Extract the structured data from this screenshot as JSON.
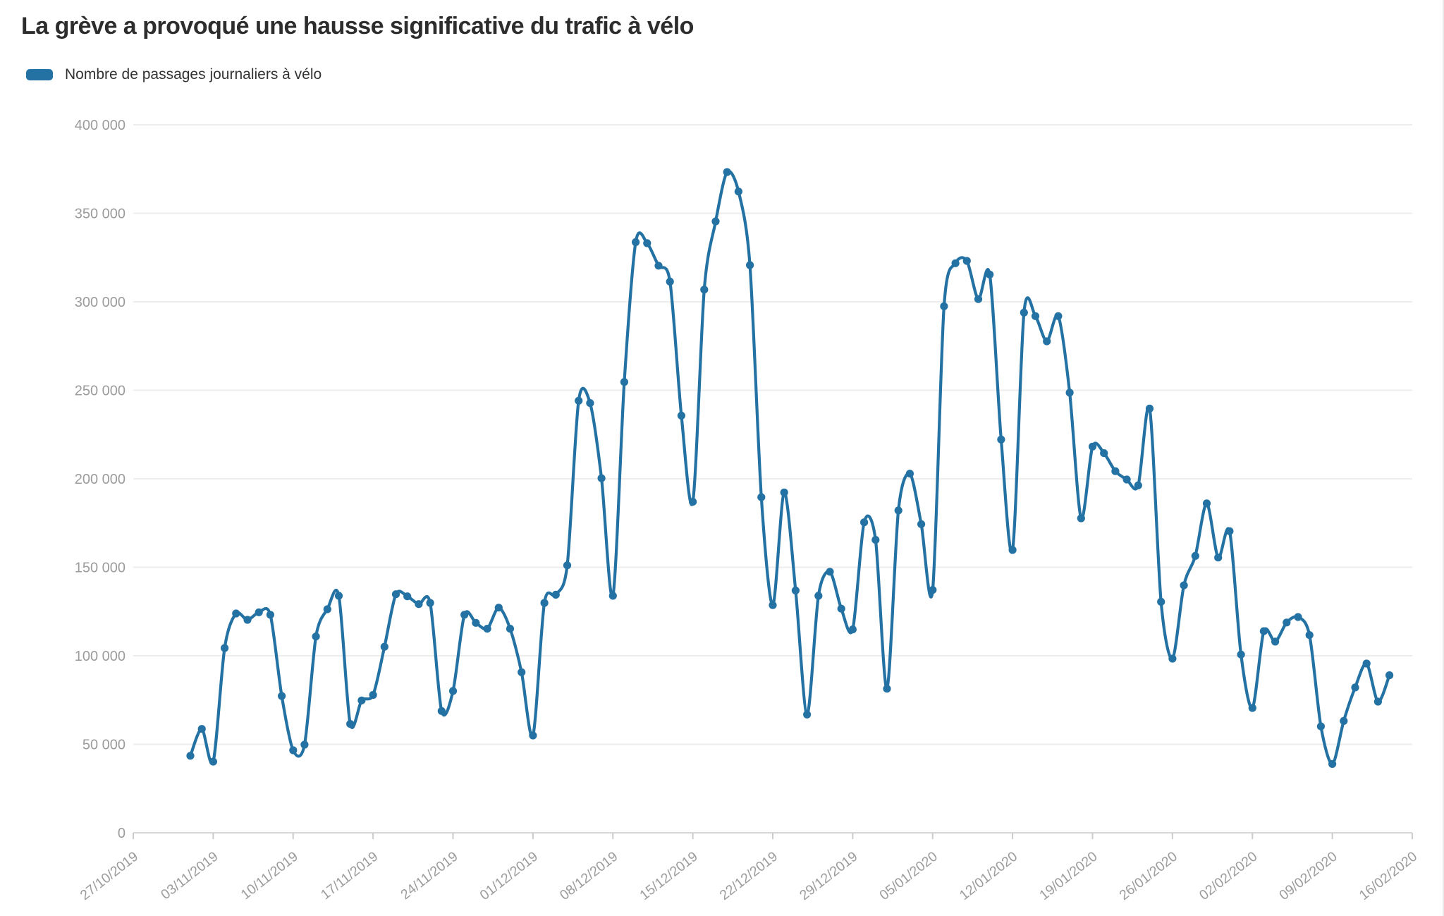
{
  "title": "La grève a provoqué une hausse significative du trafic à vélo",
  "legend": {
    "label": "Nombre de passages journaliers à vélo",
    "swatch_color": "#2372a3"
  },
  "chart_data": {
    "type": "line",
    "series_name": "Nombre de passages journaliers à vélo",
    "line_color": "#2372a3",
    "grid": "horizontal",
    "ylim": [
      0,
      400000
    ],
    "y_tick_interval": 50000,
    "y_tick_labels": [
      "0",
      "50 000",
      "100 000",
      "150 000",
      "200 000",
      "250 000",
      "300 000",
      "350 000",
      "400 000"
    ],
    "x_tick_labels": [
      "27/10/2019",
      "03/11/2019",
      "10/11/2019",
      "17/11/2019",
      "24/11/2019",
      "01/12/2019",
      "08/12/2019",
      "15/12/2019",
      "22/12/2019",
      "29/12/2019",
      "05/01/2020",
      "12/01/2020",
      "19/01/2020",
      "26/01/2020",
      "02/02/2020",
      "09/02/2020",
      "16/02/2020"
    ],
    "axis_start_date": "27/10/2019",
    "first_point_day_offset": 5,
    "dates": [
      "01/11/2019",
      "02/11/2019",
      "03/11/2019",
      "04/11/2019",
      "05/11/2019",
      "06/11/2019",
      "07/11/2019",
      "08/11/2019",
      "09/11/2019",
      "10/11/2019",
      "11/11/2019",
      "12/11/2019",
      "13/11/2019",
      "14/11/2019",
      "15/11/2019",
      "16/11/2019",
      "17/11/2019",
      "18/11/2019",
      "19/11/2019",
      "20/11/2019",
      "21/11/2019",
      "22/11/2019",
      "23/11/2019",
      "24/11/2019",
      "25/11/2019",
      "26/11/2019",
      "27/11/2019",
      "28/11/2019",
      "29/11/2019",
      "30/11/2019",
      "01/12/2019",
      "02/12/2019",
      "03/12/2019",
      "04/12/2019",
      "05/12/2019",
      "06/12/2019",
      "07/12/2019",
      "08/12/2019",
      "09/12/2019",
      "10/12/2019",
      "11/12/2019",
      "12/12/2019",
      "13/12/2019",
      "14/12/2019",
      "15/12/2019",
      "16/12/2019",
      "17/12/2019",
      "18/12/2019",
      "19/12/2019",
      "20/12/2019",
      "21/12/2019",
      "22/12/2019",
      "23/12/2019",
      "24/12/2019",
      "25/12/2019",
      "26/12/2019",
      "27/12/2019",
      "28/12/2019",
      "29/12/2019",
      "30/12/2019",
      "31/12/2019",
      "01/01/2020",
      "02/01/2020",
      "03/01/2020",
      "04/01/2020",
      "05/01/2020",
      "06/01/2020",
      "07/01/2020",
      "08/01/2020",
      "09/01/2020",
      "10/01/2020",
      "11/01/2020",
      "12/01/2020",
      "13/01/2020",
      "14/01/2020",
      "15/01/2020",
      "16/01/2020",
      "17/01/2020",
      "18/01/2020",
      "19/01/2020",
      "20/01/2020",
      "21/01/2020",
      "22/01/2020",
      "23/01/2020",
      "24/01/2020",
      "25/01/2020",
      "26/01/2020",
      "27/01/2020",
      "28/01/2020",
      "29/01/2020",
      "30/01/2020",
      "31/01/2020",
      "01/02/2020",
      "02/02/2020",
      "03/02/2020",
      "04/02/2020",
      "05/02/2020",
      "06/02/2020",
      "07/02/2020",
      "08/02/2020",
      "09/02/2020",
      "10/02/2020",
      "11/02/2020",
      "12/02/2020",
      "13/02/2020",
      "14/02/2020"
    ],
    "values": [
      43500,
      58700,
      40200,
      104400,
      123900,
      120300,
      124600,
      123200,
      77300,
      46600,
      49800,
      110900,
      126300,
      133900,
      61500,
      74800,
      77900,
      105100,
      134800,
      133600,
      129200,
      129900,
      68800,
      80100,
      123200,
      118600,
      115300,
      127200,
      115300,
      90700,
      55000,
      129900,
      134500,
      151100,
      244100,
      242800,
      200300,
      133900,
      254700,
      333700,
      333100,
      320400,
      311400,
      235700,
      187000,
      306900,
      345400,
      373300,
      362300,
      320700,
      189600,
      128600,
      192300,
      136900,
      66800,
      133900,
      147500,
      126600,
      114900,
      175400,
      165500,
      81400,
      182100,
      202900,
      174400,
      137200,
      297500,
      321800,
      323100,
      301500,
      315400,
      222200,
      159800,
      293900,
      291900,
      277700,
      291900,
      248700,
      177700,
      218200,
      214500,
      204300,
      199600,
      196300,
      239700,
      130500,
      98400,
      139800,
      156400,
      186100,
      155500,
      170400,
      100700,
      70500,
      113900,
      108000,
      118800,
      121900,
      111700,
      60100,
      38900,
      63200,
      82100,
      95600,
      74100,
      89000
    ]
  },
  "colors": {
    "grid_line": "#ededed",
    "axis_line": "#d6d6d6",
    "tick_mark": "#cccccc",
    "axis_label": "#9c9c9c",
    "title_text": "#2d2d2d"
  }
}
